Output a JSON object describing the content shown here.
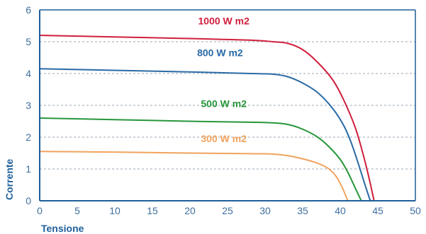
{
  "chart_data": {
    "type": "line",
    "title": "",
    "xlabel": "Tensione",
    "ylabel": "Corrente",
    "xlim": [
      0,
      50
    ],
    "ylim": [
      0,
      6
    ],
    "xticks": [
      0,
      5,
      10,
      15,
      20,
      25,
      30,
      35,
      40,
      45,
      50
    ],
    "yticks": [
      0,
      1,
      2,
      3,
      4,
      5,
      6
    ],
    "grid": "horizontal dashed",
    "axis_color": "#1f5f9a",
    "series": [
      {
        "name": "1000 W m2",
        "color": "#d01f3c",
        "points": [
          [
            0,
            5.2
          ],
          [
            10,
            5.15
          ],
          [
            20,
            5.1
          ],
          [
            28,
            5.05
          ],
          [
            31,
            5.0
          ],
          [
            33,
            4.95
          ],
          [
            35,
            4.75
          ],
          [
            37,
            4.35
          ],
          [
            39,
            3.8
          ],
          [
            40.5,
            3.15
          ],
          [
            42,
            2.3
          ],
          [
            43,
            1.5
          ],
          [
            43.8,
            0.75
          ],
          [
            44.5,
            0
          ]
        ]
      },
      {
        "name": "800 W m2",
        "color": "#2a6aa5",
        "points": [
          [
            0,
            4.15
          ],
          [
            10,
            4.1
          ],
          [
            20,
            4.05
          ],
          [
            28,
            4.0
          ],
          [
            31,
            3.98
          ],
          [
            33,
            3.9
          ],
          [
            35,
            3.7
          ],
          [
            37,
            3.4
          ],
          [
            39,
            2.9
          ],
          [
            40.5,
            2.35
          ],
          [
            41.5,
            1.8
          ],
          [
            42.5,
            1.1
          ],
          [
            43.3,
            0.5
          ],
          [
            44,
            0
          ]
        ]
      },
      {
        "name": "500 W m2",
        "color": "#27963a",
        "points": [
          [
            0,
            2.6
          ],
          [
            10,
            2.55
          ],
          [
            20,
            2.5
          ],
          [
            28,
            2.47
          ],
          [
            31,
            2.45
          ],
          [
            33,
            2.4
          ],
          [
            35,
            2.25
          ],
          [
            37,
            2.0
          ],
          [
            38.5,
            1.7
          ],
          [
            40,
            1.3
          ],
          [
            41,
            0.9
          ],
          [
            42,
            0.4
          ],
          [
            42.8,
            0
          ]
        ]
      },
      {
        "name": "300 W m2",
        "color": "#f0a35e",
        "points": [
          [
            0,
            1.55
          ],
          [
            10,
            1.53
          ],
          [
            20,
            1.5
          ],
          [
            28,
            1.48
          ],
          [
            31,
            1.47
          ],
          [
            33,
            1.42
          ],
          [
            35,
            1.32
          ],
          [
            37,
            1.18
          ],
          [
            38.5,
            1.0
          ],
          [
            39.5,
            0.75
          ],
          [
            40.3,
            0.4
          ],
          [
            41,
            0
          ]
        ]
      }
    ]
  }
}
